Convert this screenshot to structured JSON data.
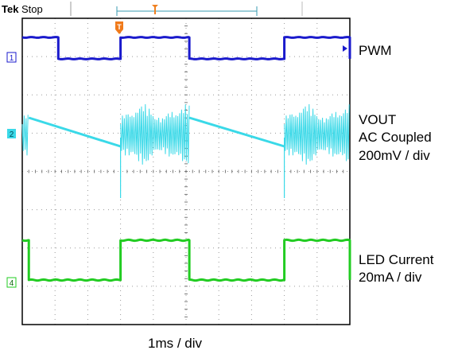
{
  "header": {
    "brand": "Tek",
    "status": "Stop"
  },
  "channels": [
    {
      "marker": "1",
      "name": "PWM",
      "color": "#1a1acc"
    },
    {
      "marker": "2",
      "name": "VOUT",
      "color": "#3ad9e8"
    },
    {
      "marker": "4",
      "name": "LED Current",
      "color": "#22cc22"
    }
  ],
  "labels": {
    "pwm": "PWM",
    "vout_line1": "VOUT",
    "vout_line2": "AC Coupled",
    "vout_line3": "200mV / div",
    "led_line1": "LED Current",
    "led_line2": "20mA / div",
    "timebase": "1ms / div"
  },
  "chart_data": {
    "type": "line",
    "title": "",
    "xlabel": "1ms / div",
    "x_divisions": 10,
    "y_divisions": 8,
    "grid": true,
    "x_unit": "ms",
    "xlim": [
      0,
      10
    ],
    "trigger_x": 3,
    "series": [
      {
        "name": "PWM",
        "color": "#1a1acc",
        "high_intervals": [
          [
            0,
            1.1
          ],
          [
            3,
            5.1
          ],
          [
            8,
            10
          ]
        ]
      },
      {
        "name": "VOUT",
        "color": "#3ad9e8",
        "ripple_intervals": [
          [
            0,
            0.2
          ],
          [
            3,
            5.1
          ],
          [
            8,
            10
          ]
        ],
        "ramp_intervals": [
          [
            0.2,
            3
          ],
          [
            5.1,
            8
          ]
        ]
      },
      {
        "name": "LED Current",
        "color": "#22cc22",
        "high_intervals": [
          [
            0,
            0.2
          ],
          [
            3,
            5.1
          ],
          [
            8,
            10
          ]
        ]
      }
    ]
  }
}
